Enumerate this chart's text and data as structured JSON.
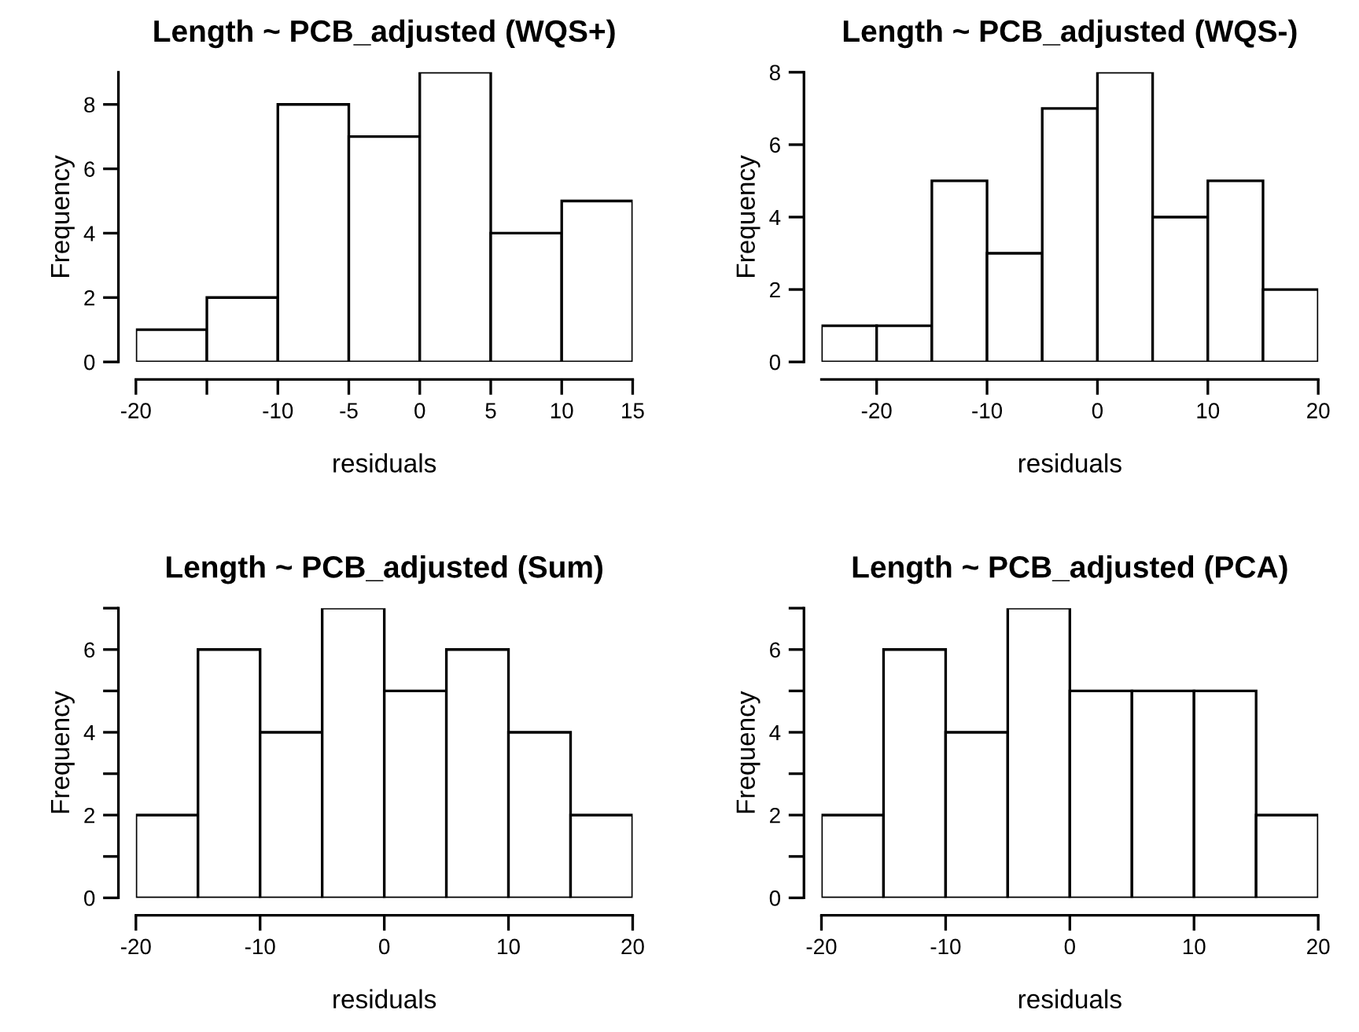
{
  "chart_data": [
    {
      "type": "histogram",
      "title": "Length ~ PCB_adjusted (WQS+)",
      "xlabel": "residuals",
      "ylabel": "Frequency",
      "color": "#ffffff",
      "bins": [
        -20,
        -15,
        -10,
        -5,
        0,
        5,
        10,
        15
      ],
      "values": [
        1,
        2,
        8,
        7,
        9,
        4,
        5
      ],
      "xlim": [
        -20,
        15
      ],
      "xticks": [
        -20,
        {
          "value": -15,
          "label": null
        },
        -10,
        -5,
        0,
        5,
        10,
        15
      ],
      "ylim": [
        0,
        9
      ],
      "yticks": [
        0,
        2,
        4,
        6,
        8
      ],
      "grid": false
    },
    {
      "type": "histogram",
      "title": "Length ~ PCB_adjusted (WQS-)",
      "xlabel": "residuals",
      "ylabel": "Frequency",
      "color": "#ffffff",
      "bins": [
        -25,
        -20,
        -15,
        -10,
        -5,
        0,
        5,
        10,
        15,
        20
      ],
      "values": [
        1,
        1,
        5,
        3,
        7,
        8,
        4,
        5,
        2
      ],
      "xlim": [
        -25,
        20
      ],
      "xticks": [
        -20,
        -10,
        0,
        10,
        20
      ],
      "ylim": [
        0,
        8
      ],
      "yticks": [
        0,
        2,
        4,
        6,
        8
      ],
      "grid": false
    },
    {
      "type": "histogram",
      "title": "Length ~ PCB_adjusted (Sum)",
      "xlabel": "residuals",
      "ylabel": "Frequency",
      "color": "#ffffff",
      "bins": [
        -20,
        -15,
        -10,
        -5,
        0,
        5,
        10,
        15,
        20
      ],
      "values": [
        2,
        6,
        4,
        7,
        5,
        6,
        4,
        2
      ],
      "xlim": [
        -20,
        20
      ],
      "xticks": [
        -20,
        -10,
        0,
        10,
        20
      ],
      "ylim": [
        0,
        7
      ],
      "yticks": [
        0,
        {
          "value": 1,
          "label": null
        },
        2,
        {
          "value": 3,
          "label": null
        },
        4,
        {
          "value": 5,
          "label": null
        },
        6,
        {
          "value": 7,
          "label": null
        }
      ],
      "grid": false
    },
    {
      "type": "histogram",
      "title": "Length ~ PCB_adjusted (PCA)",
      "xlabel": "residuals",
      "ylabel": "Frequency",
      "color": "#ffffff",
      "bins": [
        -20,
        -15,
        -10,
        -5,
        0,
        5,
        10,
        15,
        20
      ],
      "values": [
        2,
        6,
        4,
        7,
        5,
        5,
        5,
        2
      ],
      "xlim": [
        -20,
        20
      ],
      "xticks": [
        -20,
        -10,
        0,
        10,
        20
      ],
      "ylim": [
        0,
        7
      ],
      "yticks": [
        0,
        {
          "value": 1,
          "label": null
        },
        2,
        {
          "value": 3,
          "label": null
        },
        4,
        {
          "value": 5,
          "label": null
        },
        6,
        {
          "value": 7,
          "label": null
        }
      ],
      "grid": false
    }
  ]
}
